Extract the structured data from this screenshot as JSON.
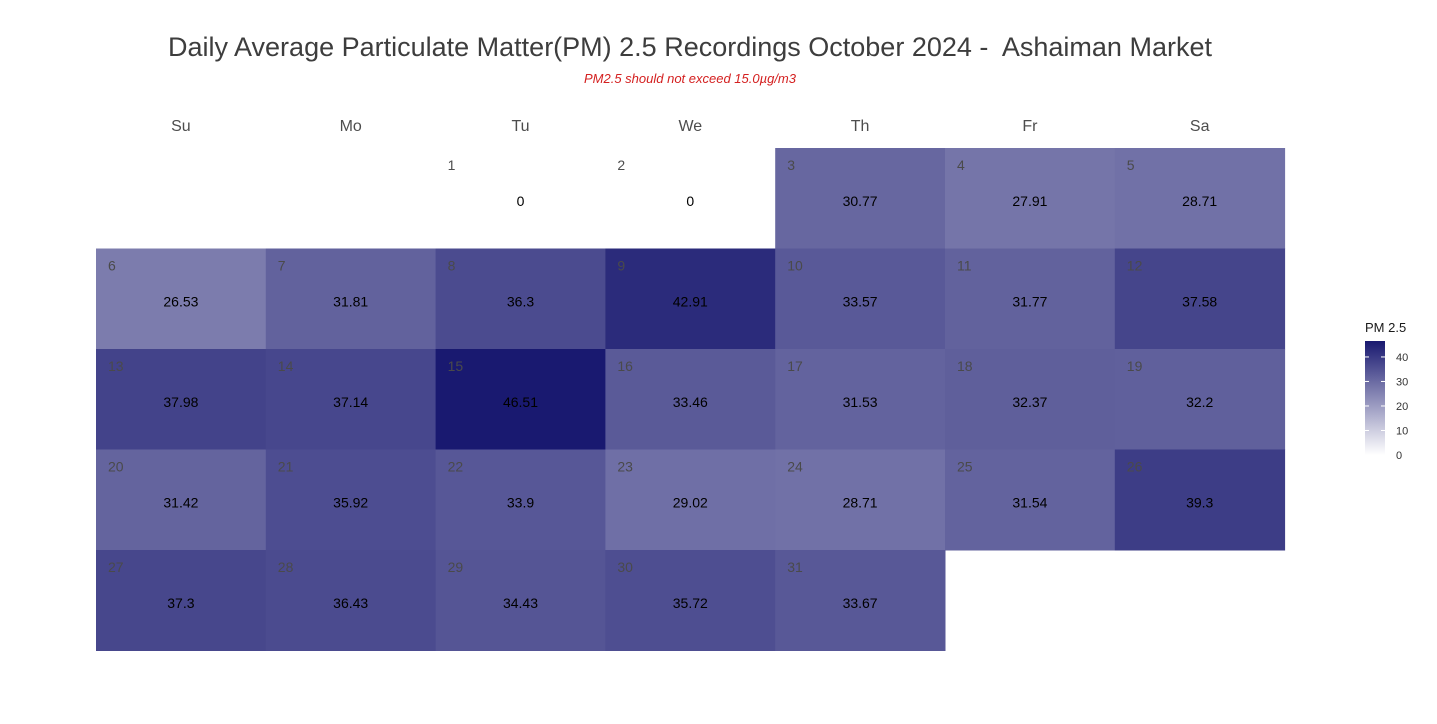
{
  "title": "Daily Average Particulate Matter(PM) 2.5 Recordings October 2024 -  Ashaiman Market",
  "subtitle": "PM2.5 should not exceed 15.0µg/m3",
  "chart_data": {
    "type": "heatmap",
    "weekdays": [
      "Su",
      "Mo",
      "Tu",
      "We",
      "Th",
      "Fr",
      "Sa"
    ],
    "days": [
      {
        "day": 1,
        "weekday": "Tu",
        "week": 1,
        "value": 0
      },
      {
        "day": 2,
        "weekday": "We",
        "week": 1,
        "value": 0
      },
      {
        "day": 3,
        "weekday": "Th",
        "week": 1,
        "value": 30.77
      },
      {
        "day": 4,
        "weekday": "Fr",
        "week": 1,
        "value": 27.91
      },
      {
        "day": 5,
        "weekday": "Sa",
        "week": 1,
        "value": 28.71
      },
      {
        "day": 6,
        "weekday": "Su",
        "week": 2,
        "value": 26.53
      },
      {
        "day": 7,
        "weekday": "Mo",
        "week": 2,
        "value": 31.81
      },
      {
        "day": 8,
        "weekday": "Tu",
        "week": 2,
        "value": 36.3
      },
      {
        "day": 9,
        "weekday": "We",
        "week": 2,
        "value": 42.91
      },
      {
        "day": 10,
        "weekday": "Th",
        "week": 2,
        "value": 33.57
      },
      {
        "day": 11,
        "weekday": "Fr",
        "week": 2,
        "value": 31.77
      },
      {
        "day": 12,
        "weekday": "Sa",
        "week": 2,
        "value": 37.58
      },
      {
        "day": 13,
        "weekday": "Su",
        "week": 3,
        "value": 37.98
      },
      {
        "day": 14,
        "weekday": "Mo",
        "week": 3,
        "value": 37.14
      },
      {
        "day": 15,
        "weekday": "Tu",
        "week": 3,
        "value": 46.51
      },
      {
        "day": 16,
        "weekday": "We",
        "week": 3,
        "value": 33.46
      },
      {
        "day": 17,
        "weekday": "Th",
        "week": 3,
        "value": 31.53
      },
      {
        "day": 18,
        "weekday": "Fr",
        "week": 3,
        "value": 32.37
      },
      {
        "day": 19,
        "weekday": "Sa",
        "week": 3,
        "value": 32.2
      },
      {
        "day": 20,
        "weekday": "Su",
        "week": 4,
        "value": 31.42
      },
      {
        "day": 21,
        "weekday": "Mo",
        "week": 4,
        "value": 35.92
      },
      {
        "day": 22,
        "weekday": "Tu",
        "week": 4,
        "value": 33.9
      },
      {
        "day": 23,
        "weekday": "We",
        "week": 4,
        "value": 29.02
      },
      {
        "day": 24,
        "weekday": "Th",
        "week": 4,
        "value": 28.71
      },
      {
        "day": 25,
        "weekday": "Fr",
        "week": 4,
        "value": 31.54
      },
      {
        "day": 26,
        "weekday": "Sa",
        "week": 4,
        "value": 39.3
      },
      {
        "day": 27,
        "weekday": "Su",
        "week": 5,
        "value": 37.3
      },
      {
        "day": 28,
        "weekday": "Mo",
        "week": 5,
        "value": 36.43
      },
      {
        "day": 29,
        "weekday": "Tu",
        "week": 5,
        "value": 34.43
      },
      {
        "day": 30,
        "weekday": "We",
        "week": 5,
        "value": 35.72
      },
      {
        "day": 31,
        "weekday": "Th",
        "week": 5,
        "value": 33.67
      }
    ],
    "legend": {
      "title": "PM 2.5",
      "ticks": [
        0,
        10,
        20,
        30,
        40
      ],
      "range": [
        0,
        46.51
      ],
      "low_color": "#ffffff",
      "high_color": "#191970",
      "placement": "right"
    }
  }
}
